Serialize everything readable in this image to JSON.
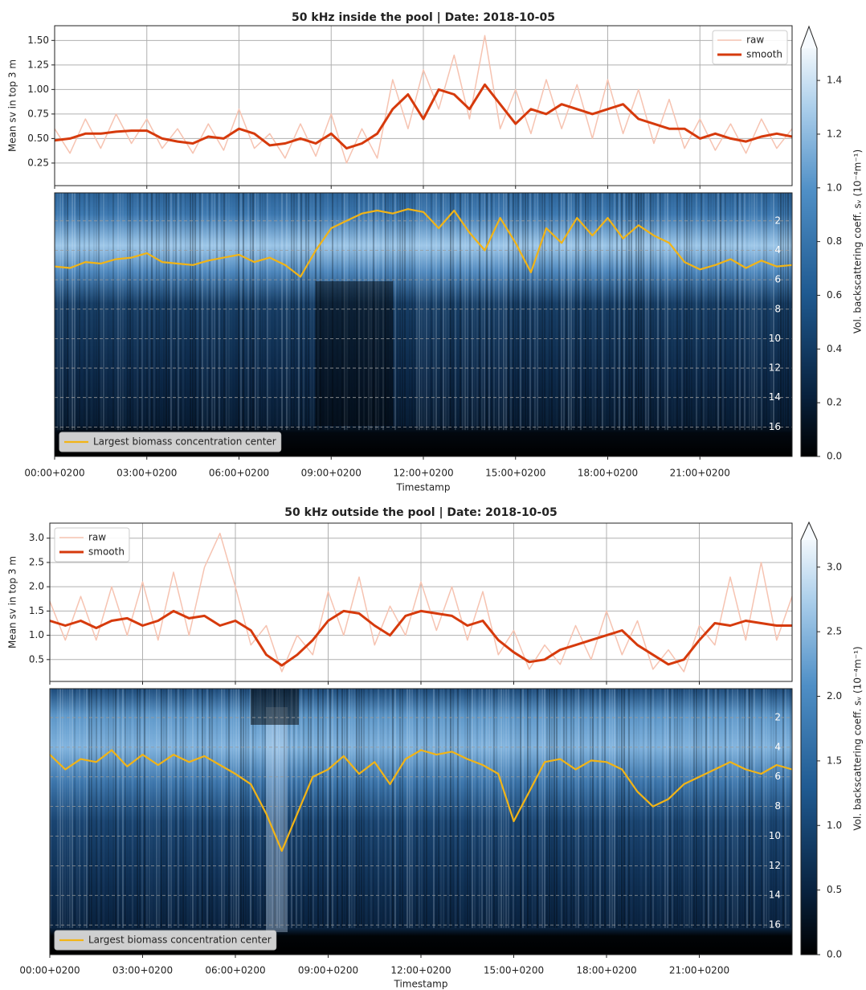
{
  "chart_data": [
    {
      "type": "line",
      "title": "50 kHz inside the pool  |  Date: 2018-10-05",
      "y_label": "Mean sv in top 3 m",
      "x": [
        0,
        0.5,
        1,
        1.5,
        2,
        2.5,
        3,
        3.5,
        4,
        4.5,
        5,
        5.5,
        6,
        6.5,
        7,
        7.5,
        8,
        8.5,
        9,
        9.5,
        10,
        10.5,
        11,
        11.5,
        12,
        12.5,
        13,
        13.5,
        14,
        14.5,
        15,
        15.5,
        16,
        16.5,
        17,
        17.5,
        18,
        18.5,
        19,
        19.5,
        20,
        20.5,
        21,
        21.5,
        22,
        22.5,
        23,
        23.5,
        24
      ],
      "series": [
        {
          "name": "raw",
          "color": "#f6c3b1",
          "values": [
            0.6,
            0.35,
            0.7,
            0.4,
            0.75,
            0.45,
            0.7,
            0.4,
            0.6,
            0.35,
            0.65,
            0.38,
            0.8,
            0.4,
            0.55,
            0.3,
            0.65,
            0.32,
            0.75,
            0.25,
            0.6,
            0.3,
            1.1,
            0.6,
            1.2,
            0.8,
            1.35,
            0.7,
            1.55,
            0.6,
            1.0,
            0.55,
            1.1,
            0.6,
            1.05,
            0.5,
            1.1,
            0.55,
            1.0,
            0.45,
            0.9,
            0.4,
            0.7,
            0.38,
            0.65,
            0.35,
            0.7,
            0.4,
            0.6
          ]
        },
        {
          "name": "smooth",
          "color": "#d63a0c",
          "values": [
            0.48,
            0.5,
            0.55,
            0.55,
            0.57,
            0.58,
            0.58,
            0.5,
            0.47,
            0.45,
            0.52,
            0.5,
            0.6,
            0.55,
            0.43,
            0.45,
            0.5,
            0.45,
            0.55,
            0.4,
            0.45,
            0.55,
            0.8,
            0.95,
            0.7,
            1.0,
            0.95,
            0.8,
            1.05,
            0.85,
            0.65,
            0.8,
            0.75,
            0.85,
            0.8,
            0.75,
            0.8,
            0.85,
            0.7,
            0.65,
            0.6,
            0.6,
            0.5,
            0.55,
            0.5,
            0.47,
            0.52,
            0.55,
            0.52
          ]
        }
      ],
      "xlim": [
        0,
        24
      ],
      "xticks": [
        0,
        3,
        6,
        9,
        12,
        15,
        18,
        21
      ],
      "ylim": [
        0.02,
        1.65
      ],
      "yticks": [
        0.25,
        {
          "value": 0.5,
          "label": "0.50"
        },
        0.75,
        {
          "value": 1,
          "label": "1.00"
        },
        1.25,
        {
          "value": 1.5,
          "label": "1.50"
        }
      ],
      "grid": true,
      "legend": "upper right"
    },
    {
      "type": "echogram",
      "x_label": "Timestamp",
      "x": [
        0,
        0.5,
        1,
        1.5,
        2,
        2.5,
        3,
        3.5,
        4,
        4.5,
        5,
        5.5,
        6,
        6.5,
        7,
        7.5,
        8,
        8.5,
        9,
        9.5,
        10,
        10.5,
        11,
        11.5,
        12,
        12.5,
        13,
        13.5,
        14,
        14.5,
        15,
        15.5,
        16,
        16.5,
        17,
        17.5,
        18,
        18.5,
        19,
        19.5,
        20,
        20.5,
        21,
        21.5,
        22,
        22.5,
        23,
        23.5,
        24
      ],
      "series": [
        {
          "name": "Largest biomass concentration center",
          "color": "#f2b416",
          "values": [
            5.1,
            5.2,
            4.8,
            4.9,
            4.6,
            4.5,
            4.2,
            4.8,
            4.9,
            5.0,
            4.7,
            4.5,
            4.3,
            4.8,
            4.5,
            5.0,
            5.8,
            4.0,
            2.5,
            2.0,
            1.5,
            1.3,
            1.5,
            1.2,
            1.4,
            2.5,
            1.3,
            2.8,
            4.0,
            1.8,
            3.5,
            5.5,
            2.5,
            3.5,
            1.8,
            3.0,
            1.8,
            3.2,
            2.3,
            3.0,
            3.5,
            4.8,
            5.3,
            5.0,
            4.6,
            5.2,
            4.7,
            5.1,
            5.0
          ]
        }
      ],
      "xlim": [
        0,
        24
      ],
      "xticks": [
        {
          "value": 0,
          "label": "00:00+0200"
        },
        {
          "value": 3,
          "label": "03:00+0200"
        },
        {
          "value": 6,
          "label": "06:00+0200"
        },
        {
          "value": 9,
          "label": "09:00+0200"
        },
        {
          "value": 12,
          "label": "12:00+0200"
        },
        {
          "value": 15,
          "label": "15:00+0200"
        },
        {
          "value": 18,
          "label": "18:00+0200"
        },
        {
          "value": 21,
          "label": "21:00+0200"
        }
      ],
      "ylim": [
        0.1,
        18
      ],
      "invert_y": true,
      "yticks": [
        2,
        4,
        6,
        8,
        10,
        12,
        14,
        16
      ],
      "grid": true,
      "legend": "lower left",
      "colorbar": {
        "label": "Vol. backscattering coeff. sᵥ (10⁻⁴m⁻¹)",
        "lim": [
          0,
          1.52
        ],
        "extend": "max",
        "ticks": [
          {
            "value": 0,
            "label": "0.0"
          },
          0.2,
          0.4,
          0.6,
          0.8,
          {
            "value": 1,
            "label": "1.0"
          },
          1.2,
          1.4
        ]
      }
    },
    {
      "type": "line",
      "title": "50 kHz outside the pool  |  Date: 2018-10-05",
      "y_label": "Mean sv in top 3 m",
      "x": [
        0,
        0.5,
        1,
        1.5,
        2,
        2.5,
        3,
        3.5,
        4,
        4.5,
        5,
        5.5,
        6,
        6.5,
        7,
        7.5,
        8,
        8.5,
        9,
        9.5,
        10,
        10.5,
        11,
        11.5,
        12,
        12.5,
        13,
        13.5,
        14,
        14.5,
        15,
        15.5,
        16,
        16.5,
        17,
        17.5,
        18,
        18.5,
        19,
        19.5,
        20,
        20.5,
        21,
        21.5,
        22,
        22.5,
        23,
        23.5,
        24
      ],
      "series": [
        {
          "name": "raw",
          "color": "#f6c3b1",
          "values": [
            1.7,
            0.9,
            1.8,
            0.9,
            2.0,
            1.0,
            2.1,
            0.9,
            2.3,
            1.0,
            2.4,
            3.1,
            2.0,
            0.8,
            1.2,
            0.25,
            1.0,
            0.6,
            1.9,
            1.0,
            2.2,
            0.8,
            1.6,
            1.0,
            2.1,
            1.1,
            2.0,
            0.9,
            1.9,
            0.6,
            1.1,
            0.3,
            0.8,
            0.4,
            1.2,
            0.5,
            1.5,
            0.6,
            1.3,
            0.3,
            0.7,
            0.25,
            1.2,
            0.8,
            2.2,
            0.9,
            2.5,
            0.9,
            1.8
          ]
        },
        {
          "name": "smooth",
          "color": "#d63a0c",
          "values": [
            1.3,
            1.2,
            1.3,
            1.15,
            1.3,
            1.35,
            1.2,
            1.3,
            1.5,
            1.35,
            1.4,
            1.2,
            1.3,
            1.1,
            0.6,
            0.38,
            0.6,
            0.9,
            1.3,
            1.5,
            1.45,
            1.2,
            1.0,
            1.4,
            1.5,
            1.45,
            1.4,
            1.2,
            1.3,
            0.9,
            0.65,
            0.45,
            0.5,
            0.7,
            0.8,
            0.9,
            1.0,
            1.1,
            0.8,
            0.6,
            0.4,
            0.5,
            0.9,
            1.25,
            1.2,
            1.3,
            1.25,
            1.2,
            1.2
          ]
        }
      ],
      "xlim": [
        0,
        24
      ],
      "xticks": [
        0,
        3,
        6,
        9,
        12,
        15,
        18,
        21
      ],
      "ylim": [
        0.05,
        3.31
      ],
      "yticks": [
        0.5,
        {
          "value": 1,
          "label": "1.0"
        },
        1.5,
        {
          "value": 2,
          "label": "2.0"
        },
        2.5,
        {
          "value": 3,
          "label": "3.0"
        }
      ],
      "grid": true,
      "legend": "upper left"
    },
    {
      "type": "echogram",
      "x_label": "Timestamp",
      "x": [
        0,
        0.5,
        1,
        1.5,
        2,
        2.5,
        3,
        3.5,
        4,
        4.5,
        5,
        5.5,
        6,
        6.5,
        7,
        7.5,
        8,
        8.5,
        9,
        9.5,
        10,
        10.5,
        11,
        11.5,
        12,
        12.5,
        13,
        13.5,
        14,
        14.5,
        15,
        15.5,
        16,
        16.5,
        17,
        17.5,
        18,
        18.5,
        19,
        19.5,
        20,
        20.5,
        21,
        21.5,
        22,
        22.5,
        23,
        23.5,
        24
      ],
      "series": [
        {
          "name": "Largest biomass concentration center",
          "color": "#f2b416",
          "values": [
            4.5,
            5.5,
            4.8,
            5.0,
            4.2,
            5.3,
            4.5,
            5.2,
            4.5,
            5.0,
            4.6,
            5.2,
            5.8,
            6.5,
            8.5,
            11.0,
            8.5,
            6.0,
            5.5,
            4.6,
            5.8,
            5.0,
            6.5,
            4.8,
            4.2,
            4.5,
            4.3,
            4.8,
            5.2,
            5.8,
            9.0,
            7.0,
            5.0,
            4.8,
            5.5,
            4.9,
            5.0,
            5.5,
            7.0,
            8.0,
            7.5,
            6.5,
            6.0,
            5.5,
            5.0,
            5.5,
            5.8,
            5.2,
            5.5
          ]
        }
      ],
      "xlim": [
        0,
        24
      ],
      "xticks": [
        {
          "value": 0,
          "label": "00:00+0200"
        },
        {
          "value": 3,
          "label": "03:00+0200"
        },
        {
          "value": 6,
          "label": "06:00+0200"
        },
        {
          "value": 9,
          "label": "09:00+0200"
        },
        {
          "value": 12,
          "label": "12:00+0200"
        },
        {
          "value": 15,
          "label": "15:00+0200"
        },
        {
          "value": 18,
          "label": "18:00+0200"
        },
        {
          "value": 21,
          "label": "21:00+0200"
        }
      ],
      "ylim": [
        0.05,
        18
      ],
      "invert_y": true,
      "yticks": [
        2,
        4,
        6,
        8,
        10,
        12,
        14,
        16
      ],
      "grid": true,
      "legend": "lower left",
      "colorbar": {
        "label": "Vol. backscattering coeff. sᵥ (10⁻⁴m⁻¹)",
        "lim": [
          0,
          3.21
        ],
        "extend": "max",
        "ticks": [
          {
            "value": 0,
            "label": "0.0"
          },
          0.5,
          {
            "value": 1,
            "label": "1.0"
          },
          1.5,
          {
            "value": 2,
            "label": "2.0"
          },
          2.5,
          {
            "value": 3,
            "label": "3.0"
          }
        ]
      }
    }
  ]
}
